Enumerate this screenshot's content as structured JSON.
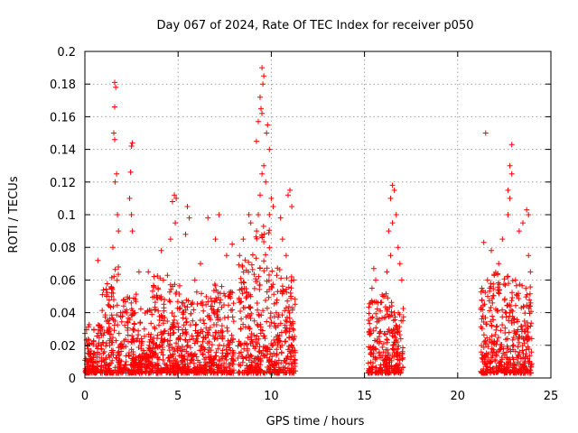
{
  "chart_data": {
    "type": "scatter",
    "title": "Day 067 of 2024, Rate Of TEC Index for receiver p050",
    "xlabel": "GPS time / hours",
    "ylabel": "ROTI / TECUs",
    "xlim": [
      0,
      25
    ],
    "ylim": [
      0,
      0.2
    ],
    "xticks": [
      0,
      5,
      10,
      15,
      20,
      25
    ],
    "yticks": [
      0,
      0.02,
      0.04,
      0.06,
      0.08,
      0.1,
      0.12,
      0.14,
      0.16,
      0.18,
      0.2
    ],
    "xtick_labels": [
      "0",
      "5",
      "10",
      "15",
      "20",
      "25"
    ],
    "ytick_labels": [
      "0",
      "0.02",
      "0.04",
      "0.06",
      "0.08",
      "0.1",
      "0.12",
      "0.14",
      "0.16",
      "0.18",
      "0.2"
    ],
    "grid": true,
    "marker": "+",
    "color": "#ff0000",
    "series": [
      {
        "name": "ROTI",
        "points": [
          [
            1.6,
            0.181
          ],
          [
            1.65,
            0.178
          ],
          [
            1.6,
            0.166
          ],
          [
            1.55,
            0.15
          ],
          [
            1.6,
            0.146
          ],
          [
            1.7,
            0.125
          ],
          [
            1.62,
            0.12
          ],
          [
            1.75,
            0.1
          ],
          [
            1.8,
            0.09
          ],
          [
            1.5,
            0.08
          ],
          [
            2.55,
            0.144
          ],
          [
            2.5,
            0.142
          ],
          [
            2.45,
            0.126
          ],
          [
            2.5,
            0.1
          ],
          [
            2.55,
            0.09
          ],
          [
            2.4,
            0.11
          ],
          [
            2.9,
            0.065
          ],
          [
            0.7,
            0.072
          ],
          [
            3.4,
            0.065
          ],
          [
            4.1,
            0.078
          ],
          [
            4.8,
            0.112
          ],
          [
            4.9,
            0.11
          ],
          [
            4.7,
            0.108
          ],
          [
            4.85,
            0.095
          ],
          [
            4.6,
            0.085
          ],
          [
            5.5,
            0.105
          ],
          [
            5.6,
            0.098
          ],
          [
            5.4,
            0.088
          ],
          [
            6.6,
            0.098
          ],
          [
            7.2,
            0.1
          ],
          [
            7.0,
            0.085
          ],
          [
            7.6,
            0.075
          ],
          [
            7.9,
            0.082
          ],
          [
            6.2,
            0.07
          ],
          [
            5.9,
            0.06
          ],
          [
            9.5,
            0.19
          ],
          [
            9.6,
            0.185
          ],
          [
            9.55,
            0.18
          ],
          [
            9.4,
            0.172
          ],
          [
            9.45,
            0.165
          ],
          [
            9.5,
            0.162
          ],
          [
            9.3,
            0.157
          ],
          [
            9.8,
            0.155
          ],
          [
            9.75,
            0.15
          ],
          [
            9.2,
            0.145
          ],
          [
            9.9,
            0.14
          ],
          [
            9.6,
            0.13
          ],
          [
            9.5,
            0.125
          ],
          [
            9.7,
            0.12
          ],
          [
            9.4,
            0.112
          ],
          [
            10.0,
            0.11
          ],
          [
            10.1,
            0.105
          ],
          [
            9.3,
            0.1
          ],
          [
            9.9,
            0.1
          ],
          [
            10.5,
            0.098
          ],
          [
            10.9,
            0.112
          ],
          [
            11.0,
            0.115
          ],
          [
            11.1,
            0.105
          ],
          [
            10.6,
            0.085
          ],
          [
            10.8,
            0.075
          ],
          [
            8.8,
            0.1
          ],
          [
            8.9,
            0.095
          ],
          [
            8.5,
            0.085
          ],
          [
            8.3,
            0.075
          ],
          [
            11.2,
            0.06
          ],
          [
            16.5,
            0.118
          ],
          [
            16.6,
            0.115
          ],
          [
            16.4,
            0.11
          ],
          [
            16.7,
            0.1
          ],
          [
            16.5,
            0.095
          ],
          [
            16.3,
            0.09
          ],
          [
            16.8,
            0.08
          ],
          [
            16.4,
            0.075
          ],
          [
            15.5,
            0.067
          ],
          [
            15.6,
            0.06
          ],
          [
            16.9,
            0.07
          ],
          [
            17.0,
            0.06
          ],
          [
            15.4,
            0.055
          ],
          [
            16.2,
            0.065
          ],
          [
            16.0,
            0.05
          ],
          [
            21.5,
            0.15
          ],
          [
            22.9,
            0.143
          ],
          [
            22.8,
            0.13
          ],
          [
            22.9,
            0.125
          ],
          [
            22.7,
            0.115
          ],
          [
            22.8,
            0.11
          ],
          [
            22.7,
            0.1
          ],
          [
            23.7,
            0.103
          ],
          [
            23.8,
            0.1
          ],
          [
            23.5,
            0.095
          ],
          [
            23.3,
            0.09
          ],
          [
            21.4,
            0.083
          ],
          [
            22.4,
            0.085
          ],
          [
            21.8,
            0.078
          ],
          [
            23.8,
            0.075
          ],
          [
            23.9,
            0.065
          ],
          [
            22.2,
            0.07
          ],
          [
            21.6,
            0.06
          ],
          [
            23.1,
            0.06
          ],
          [
            21.3,
            0.055
          ]
        ],
        "dense_bands": [
          {
            "x_range": [
              0.0,
              0.9
            ],
            "y_peak": 0.03
          },
          {
            "x_range": [
              0.9,
              1.4
            ],
            "y_peak": 0.055
          },
          {
            "x_range": [
              1.4,
              2.0
            ],
            "y_peak": 0.065
          },
          {
            "x_range": [
              2.0,
              2.8
            ],
            "y_peak": 0.05
          },
          {
            "x_range": [
              2.8,
              3.6
            ],
            "y_peak": 0.04
          },
          {
            "x_range": [
              3.6,
              4.5
            ],
            "y_peak": 0.06
          },
          {
            "x_range": [
              4.5,
              5.2
            ],
            "y_peak": 0.055
          },
          {
            "x_range": [
              5.2,
              6.0
            ],
            "y_peak": 0.045
          },
          {
            "x_range": [
              6.0,
              6.8
            ],
            "y_peak": 0.05
          },
          {
            "x_range": [
              6.8,
              7.5
            ],
            "y_peak": 0.055
          },
          {
            "x_range": [
              7.5,
              8.0
            ],
            "y_peak": 0.05
          },
          {
            "x_range": [
              8.2,
              9.0
            ],
            "y_peak": 0.07
          },
          {
            "x_range": [
              9.0,
              10.0
            ],
            "y_peak": 0.09
          },
          {
            "x_range": [
              10.0,
              10.6
            ],
            "y_peak": 0.065
          },
          {
            "x_range": [
              10.6,
              11.3
            ],
            "y_peak": 0.06
          },
          {
            "x_range": [
              15.2,
              15.9
            ],
            "y_peak": 0.045
          },
          {
            "x_range": [
              15.9,
              16.6
            ],
            "y_peak": 0.05
          },
          {
            "x_range": [
              16.6,
              17.1
            ],
            "y_peak": 0.04
          },
          {
            "x_range": [
              21.2,
              21.9
            ],
            "y_peak": 0.055
          },
          {
            "x_range": [
              21.9,
              22.6
            ],
            "y_peak": 0.065
          },
          {
            "x_range": [
              22.6,
              23.3
            ],
            "y_peak": 0.06
          },
          {
            "x_range": [
              23.3,
              24.0
            ],
            "y_peak": 0.055
          }
        ]
      }
    ]
  }
}
